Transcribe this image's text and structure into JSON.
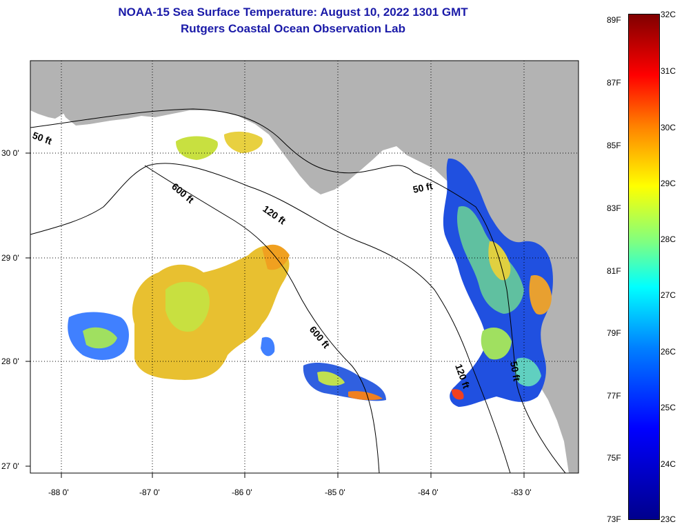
{
  "title_line1": "NOAA-15 Sea Surface Temperature:  August 10, 2022 1301 GMT",
  "title_line2": "Rutgers Coastal Ocean Observation Lab",
  "lat_labels": [
    "30 0'",
    "29 0'",
    "28 0'",
    "27 0'"
  ],
  "lon_labels": [
    "-88 0'",
    "-87 0'",
    "-86 0'",
    "-85 0'",
    "-84 0'",
    "-83 0'"
  ],
  "contour_labels": [
    "50 ft",
    "600 ft",
    "120 ft",
    "50 ft",
    "600 ft",
    "120 ft",
    "50 ft"
  ],
  "colorbar_f": [
    "89F",
    "87F",
    "85F",
    "83F",
    "81F",
    "79F",
    "77F",
    "75F",
    "73F"
  ],
  "colorbar_c": [
    "32C",
    "31C",
    "30C",
    "29C",
    "28C",
    "27C",
    "26C",
    "25C",
    "24C",
    "23C"
  ],
  "colors": {
    "land": "#b3b3b3",
    "title": "#1a1aa8",
    "ocean": "#ffffff"
  }
}
